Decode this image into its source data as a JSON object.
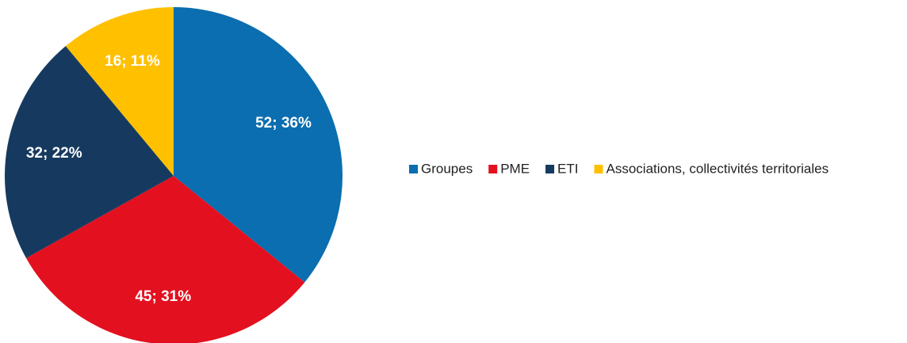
{
  "chart_data": {
    "type": "pie",
    "categories": [
      "Groupes",
      "PME",
      "ETI",
      "Associations, collectivités territoriales"
    ],
    "values": [
      52,
      45,
      32,
      16
    ],
    "value_labels": [
      "52; 36%",
      "45; 31%",
      "32; 22%",
      "16; 11%"
    ],
    "colors": [
      "#0a6eb0",
      "#e3101f",
      "#163a5f",
      "#ffc000"
    ],
    "legend": "right"
  }
}
